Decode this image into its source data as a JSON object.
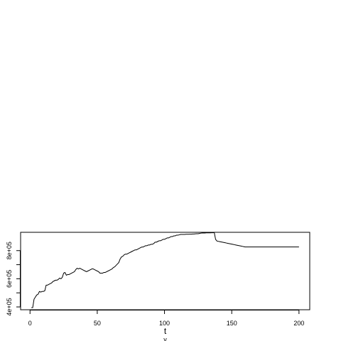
{
  "chart_data": {
    "type": "line",
    "title": "",
    "xlabel": "t",
    "sub_label": "y",
    "ylabel": "",
    "xlim": [
      -7,
      208
    ],
    "ylim": [
      380000,
      930000
    ],
    "x_ticks": [
      0,
      50,
      100,
      150,
      200
    ],
    "x_tick_labels": [
      "0",
      "50",
      "100",
      "150",
      "200"
    ],
    "y_ticks": [
      400000,
      500000,
      600000,
      700000,
      800000
    ],
    "y_tick_labels": [
      "4e+05",
      "",
      "6e+05",
      "",
      "8e+05"
    ],
    "grid": false,
    "legend": "none",
    "line_color": "#000000",
    "series": [
      {
        "points": [
          [
            1,
            395000
          ],
          [
            2,
            395000
          ],
          [
            3,
            455000
          ],
          [
            4,
            470000
          ],
          [
            5,
            485000
          ],
          [
            6,
            490000
          ],
          [
            7,
            510000
          ],
          [
            8,
            505000
          ],
          [
            9,
            510000
          ],
          [
            10,
            510000
          ],
          [
            11,
            515000
          ],
          [
            12,
            555000
          ],
          [
            13,
            555000
          ],
          [
            14,
            560000
          ],
          [
            15,
            565000
          ],
          [
            16,
            570000
          ],
          [
            17,
            580000
          ],
          [
            18,
            585000
          ],
          [
            19,
            590000
          ],
          [
            20,
            590000
          ],
          [
            21,
            595000
          ],
          [
            22,
            605000
          ],
          [
            23,
            600000
          ],
          [
            24,
            610000
          ],
          [
            25,
            640000
          ],
          [
            26,
            645000
          ],
          [
            27,
            625000
          ],
          [
            28,
            630000
          ],
          [
            29,
            630000
          ],
          [
            30,
            635000
          ],
          [
            31,
            640000
          ],
          [
            32,
            645000
          ],
          [
            33,
            650000
          ],
          [
            34,
            665000
          ],
          [
            35,
            675000
          ],
          [
            36,
            670000
          ],
          [
            37,
            675000
          ],
          [
            38,
            670000
          ],
          [
            39,
            665000
          ],
          [
            40,
            660000
          ],
          [
            41,
            655000
          ],
          [
            42,
            650000
          ],
          [
            43,
            655000
          ],
          [
            44,
            660000
          ],
          [
            45,
            665000
          ],
          [
            46,
            670000
          ],
          [
            47,
            670000
          ],
          [
            48,
            665000
          ],
          [
            49,
            660000
          ],
          [
            50,
            655000
          ],
          [
            51,
            650000
          ],
          [
            52,
            640000
          ],
          [
            53,
            640000
          ],
          [
            54,
            640000
          ],
          [
            55,
            645000
          ],
          [
            56,
            645000
          ],
          [
            57,
            650000
          ],
          [
            58,
            655000
          ],
          [
            59,
            660000
          ],
          [
            60,
            665000
          ],
          [
            61,
            670000
          ],
          [
            62,
            680000
          ],
          [
            63,
            685000
          ],
          [
            64,
            695000
          ],
          [
            65,
            705000
          ],
          [
            66,
            715000
          ],
          [
            67,
            740000
          ],
          [
            68,
            755000
          ],
          [
            69,
            760000
          ],
          [
            70,
            770000
          ],
          [
            71,
            775000
          ],
          [
            72,
            775000
          ],
          [
            73,
            780000
          ],
          [
            74,
            785000
          ],
          [
            75,
            790000
          ],
          [
            76,
            795000
          ],
          [
            77,
            800000
          ],
          [
            78,
            805000
          ],
          [
            79,
            805000
          ],
          [
            80,
            810000
          ],
          [
            81,
            815000
          ],
          [
            82,
            820000
          ],
          [
            83,
            825000
          ],
          [
            84,
            825000
          ],
          [
            85,
            830000
          ],
          [
            86,
            835000
          ],
          [
            87,
            835000
          ],
          [
            88,
            840000
          ],
          [
            89,
            840000
          ],
          [
            90,
            845000
          ],
          [
            91,
            845000
          ],
          [
            92,
            850000
          ],
          [
            93,
            860000
          ],
          [
            94,
            860000
          ],
          [
            95,
            865000
          ],
          [
            96,
            870000
          ],
          [
            97,
            870000
          ],
          [
            98,
            875000
          ],
          [
            99,
            880000
          ],
          [
            100,
            880000
          ],
          [
            101,
            885000
          ],
          [
            102,
            890000
          ],
          [
            103,
            890000
          ],
          [
            104,
            895000
          ],
          [
            105,
            900000
          ],
          [
            106,
            900000
          ],
          [
            107,
            905000
          ],
          [
            108,
            905000
          ],
          [
            109,
            910000
          ],
          [
            110,
            910000
          ],
          [
            111,
            912000
          ],
          [
            112,
            915000
          ],
          [
            113,
            915000
          ],
          [
            114,
            915000
          ],
          [
            115,
            915000
          ],
          [
            116,
            916000
          ],
          [
            117,
            916000
          ],
          [
            118,
            916000
          ],
          [
            119,
            917000
          ],
          [
            120,
            917000
          ],
          [
            121,
            918000
          ],
          [
            122,
            918000
          ],
          [
            123,
            919000
          ],
          [
            124,
            920000
          ],
          [
            125,
            920000
          ],
          [
            126,
            922000
          ],
          [
            127,
            924000
          ],
          [
            128,
            925000
          ],
          [
            129,
            925000
          ],
          [
            130,
            925000
          ],
          [
            131,
            926000
          ],
          [
            132,
            926000
          ],
          [
            133,
            926000
          ],
          [
            134,
            926000
          ],
          [
            135,
            927000
          ],
          [
            136,
            927000
          ],
          [
            137,
            928000
          ],
          [
            138,
            880000
          ],
          [
            139,
            868000
          ],
          [
            140,
            866000
          ],
          [
            141,
            864000
          ],
          [
            142,
            862000
          ],
          [
            143,
            860000
          ],
          [
            144,
            858000
          ],
          [
            145,
            856000
          ],
          [
            146,
            854000
          ],
          [
            147,
            852000
          ],
          [
            148,
            850000
          ],
          [
            149,
            848000
          ],
          [
            150,
            846000
          ],
          [
            151,
            844000
          ],
          [
            152,
            842000
          ],
          [
            153,
            840000
          ],
          [
            154,
            838000
          ],
          [
            155,
            836000
          ],
          [
            156,
            834000
          ],
          [
            157,
            832000
          ],
          [
            158,
            830000
          ],
          [
            159,
            828000
          ],
          [
            160,
            826000
          ],
          [
            170,
            826000
          ],
          [
            180,
            826000
          ],
          [
            190,
            826000
          ],
          [
            200,
            826000
          ]
        ]
      }
    ]
  }
}
